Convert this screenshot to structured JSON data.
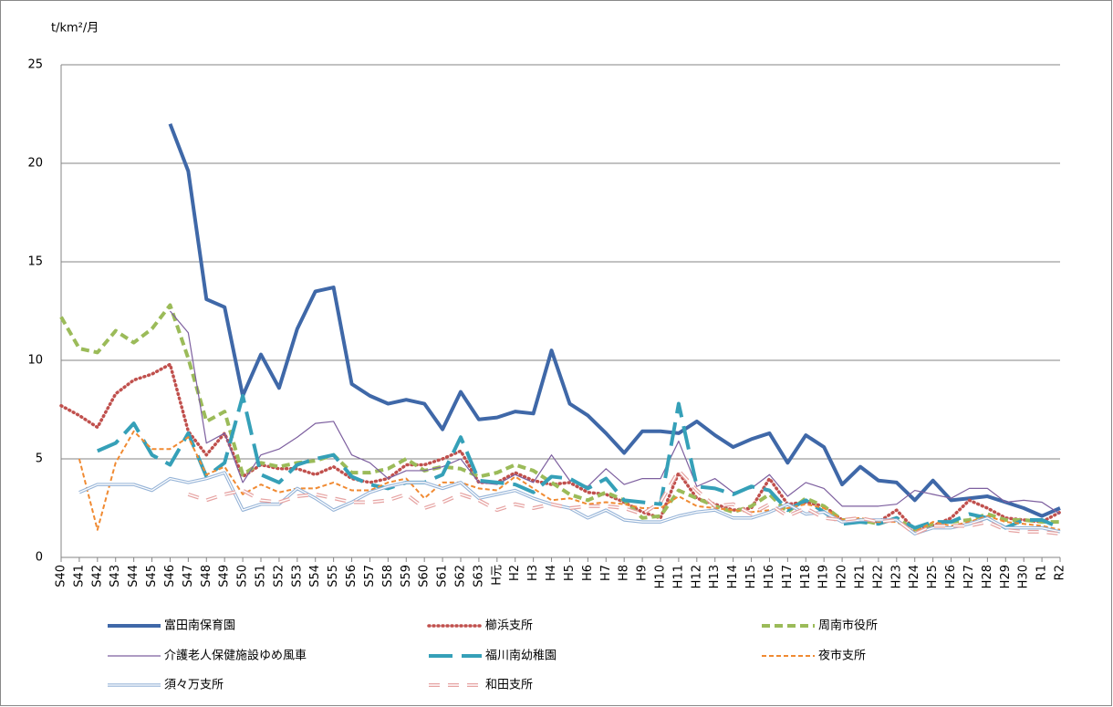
{
  "chart_data": {
    "type": "line",
    "y_label": "t/km²/月",
    "categories": [
      "S40",
      "S41",
      "S42",
      "S43",
      "S44",
      "S45",
      "S46",
      "S47",
      "S48",
      "S49",
      "S50",
      "S51",
      "S52",
      "S53",
      "S54",
      "S55",
      "S56",
      "S57",
      "S58",
      "S59",
      "S60",
      "S61",
      "S62",
      "S63",
      "H元",
      "H2",
      "H3",
      "H4",
      "H5",
      "H6",
      "H7",
      "H8",
      "H9",
      "H10",
      "H11",
      "H12",
      "H13",
      "H14",
      "H15",
      "H16",
      "H17",
      "H18",
      "H19",
      "H20",
      "H21",
      "H22",
      "H23",
      "H24",
      "H25",
      "H26",
      "H27",
      "H28",
      "H29",
      "H30",
      "R1",
      "R2"
    ],
    "ylim": [
      0,
      25
    ],
    "yticks": [
      0,
      5,
      10,
      15,
      20,
      25
    ],
    "grid": true,
    "legend": "bottom",
    "series": [
      {
        "name": "富田南保育園",
        "color": "#3f68a8",
        "style": "solid",
        "values": [
          null,
          null,
          null,
          null,
          null,
          null,
          22,
          19.6,
          13.1,
          12.7,
          8.2,
          10.3,
          8.6,
          11.6,
          13.5,
          13.7,
          8.8,
          8.2,
          7.8,
          8.0,
          7.8,
          6.5,
          8.4,
          7.0,
          7.1,
          7.4,
          7.3,
          10.5,
          7.8,
          7.2,
          6.3,
          5.3,
          6.4,
          6.4,
          6.3,
          6.9,
          6.2,
          5.6,
          6.0,
          6.3,
          4.8,
          6.2,
          5.6,
          3.7,
          4.6,
          3.9,
          3.8,
          2.9,
          3.9,
          2.9,
          3.0,
          3.1,
          2.8,
          2.5,
          2.1,
          2.5
        ]
      },
      {
        "name": "櫛浜支所",
        "color": "#c0504d",
        "style": "dotted",
        "values": [
          7.7,
          7.2,
          6.6,
          8.3,
          9.0,
          9.3,
          9.8,
          6.4,
          5.2,
          6.3,
          4.1,
          4.7,
          4.5,
          4.5,
          4.2,
          4.6,
          4.0,
          3.8,
          4.0,
          4.7,
          4.7,
          5.0,
          5.4,
          3.8,
          3.8,
          4.3,
          3.9,
          3.7,
          3.8,
          3.3,
          3.2,
          2.8,
          2.3,
          2.0,
          4.3,
          3.0,
          2.7,
          2.4,
          2.5,
          4.0,
          2.7,
          2.8,
          2.6,
          1.9,
          1.8,
          1.8,
          2.4,
          1.4,
          1.6,
          2.0,
          2.9,
          2.5,
          2.0,
          1.9,
          1.8,
          2.3
        ]
      },
      {
        "name": "周南市役所",
        "color": "#9bbb59",
        "style": "dashed",
        "values": [
          12.2,
          10.6,
          10.4,
          11.5,
          10.9,
          11.6,
          12.8,
          10.1,
          6.9,
          7.4,
          4.2,
          4.8,
          4.6,
          4.8,
          4.9,
          5.2,
          4.3,
          4.3,
          4.5,
          5.0,
          4.4,
          4.6,
          4.5,
          4.1,
          4.3,
          4.7,
          4.4,
          3.8,
          3.2,
          2.9,
          3.3,
          2.9,
          2.0,
          2.1,
          3.4,
          3.0,
          2.6,
          2.3,
          2.6,
          3.2,
          2.3,
          3.0,
          2.6,
          1.9,
          1.9,
          1.7,
          2.0,
          1.4,
          1.7,
          1.8,
          1.9,
          2.2,
          1.9,
          1.9,
          1.8,
          1.8
        ]
      },
      {
        "name": "介護老人保健施設ゆめ風車",
        "color": "#7d5f9f",
        "style": "thin",
        "values": [
          null,
          null,
          null,
          null,
          null,
          null,
          12.5,
          11.4,
          5.8,
          6.3,
          3.8,
          5.2,
          5.5,
          6.1,
          6.8,
          6.9,
          5.2,
          4.8,
          4.0,
          4.4,
          4.4,
          4.6,
          5.0,
          3.8,
          3.7,
          4.2,
          3.8,
          5.2,
          3.9,
          3.6,
          4.5,
          3.7,
          4.0,
          4.0,
          5.9,
          3.6,
          4.0,
          3.3,
          3.5,
          4.2,
          3.1,
          3.8,
          3.5,
          2.6,
          2.6,
          2.6,
          2.7,
          3.4,
          3.2,
          3.0,
          3.5,
          3.5,
          2.8,
          2.9,
          2.8,
          2.2
        ]
      },
      {
        "name": "福川南幼稚園",
        "color": "#35a0b8",
        "style": "longdash",
        "values": [
          null,
          null,
          5.4,
          5.8,
          6.8,
          5.2,
          4.7,
          6.3,
          4.1,
          4.8,
          8.2,
          4.2,
          3.8,
          4.7,
          5.0,
          5.2,
          4.1,
          3.7,
          3.5,
          3.8,
          3.8,
          4.2,
          6.1,
          3.9,
          3.8,
          3.7,
          3.3,
          4.1,
          4.0,
          3.5,
          4.0,
          2.9,
          2.8,
          2.7,
          7.8,
          3.6,
          3.5,
          3.2,
          3.6,
          3.4,
          2.4,
          2.9,
          2.3,
          1.7,
          1.8,
          1.7,
          2.0,
          1.5,
          1.8,
          1.8,
          2.2,
          2.0,
          1.5,
          1.9,
          1.9,
          1.5
        ]
      },
      {
        "name": "夜市支所",
        "color": "#f08a32",
        "style": "shortdash",
        "values": [
          null,
          5.0,
          1.4,
          4.8,
          6.4,
          5.5,
          5.5,
          6.1,
          4.2,
          4.6,
          3.2,
          3.7,
          3.3,
          3.5,
          3.5,
          3.8,
          3.4,
          3.4,
          3.8,
          4.0,
          3.0,
          3.8,
          3.8,
          3.5,
          3.4,
          4.1,
          3.5,
          2.9,
          3.0,
          2.7,
          2.8,
          2.7,
          2.5,
          2.5,
          3.1,
          2.6,
          2.5,
          2.4,
          2.3,
          2.4,
          2.5,
          2.7,
          2.5,
          1.9,
          2.0,
          1.8,
          1.8,
          1.3,
          1.8,
          1.6,
          1.8,
          2.1,
          1.8,
          1.7,
          1.6,
          1.4
        ]
      },
      {
        "name": "須々万支所",
        "color": "#95b3d7",
        "style": "double",
        "values": [
          null,
          3.3,
          3.7,
          3.7,
          3.7,
          3.4,
          4.0,
          3.8,
          4.0,
          4.3,
          2.4,
          2.7,
          2.7,
          3.5,
          3.0,
          2.4,
          2.8,
          3.3,
          3.6,
          3.8,
          3.8,
          3.5,
          3.8,
          3.0,
          3.2,
          3.4,
          3.0,
          2.7,
          2.5,
          2.0,
          2.4,
          1.9,
          1.8,
          1.8,
          2.1,
          2.3,
          2.4,
          2.0,
          2.0,
          2.3,
          2.7,
          2.2,
          2.3,
          1.8,
          1.9,
          1.9,
          1.9,
          1.2,
          1.5,
          1.5,
          1.7,
          2.0,
          1.5,
          1.5,
          1.5,
          1.3
        ]
      },
      {
        "name": "和田支所",
        "color": "#e6a3a2",
        "style": "double-dashed",
        "values": [
          null,
          null,
          null,
          null,
          null,
          null,
          null,
          3.2,
          2.9,
          3.2,
          3.4,
          2.9,
          2.8,
          3.1,
          3.2,
          3.0,
          2.8,
          2.8,
          2.9,
          3.2,
          2.5,
          2.8,
          3.2,
          2.9,
          2.4,
          2.7,
          2.5,
          2.7,
          2.5,
          2.6,
          2.6,
          2.5,
          2.2,
          2.8,
          4.4,
          3.4,
          2.6,
          2.7,
          2.2,
          2.7,
          2.1,
          2.5,
          2.0,
          1.9,
          2.0,
          1.8,
          1.9,
          1.2,
          1.6,
          1.6,
          1.6,
          1.8,
          1.4,
          1.3,
          1.3,
          1.2
        ]
      }
    ]
  }
}
